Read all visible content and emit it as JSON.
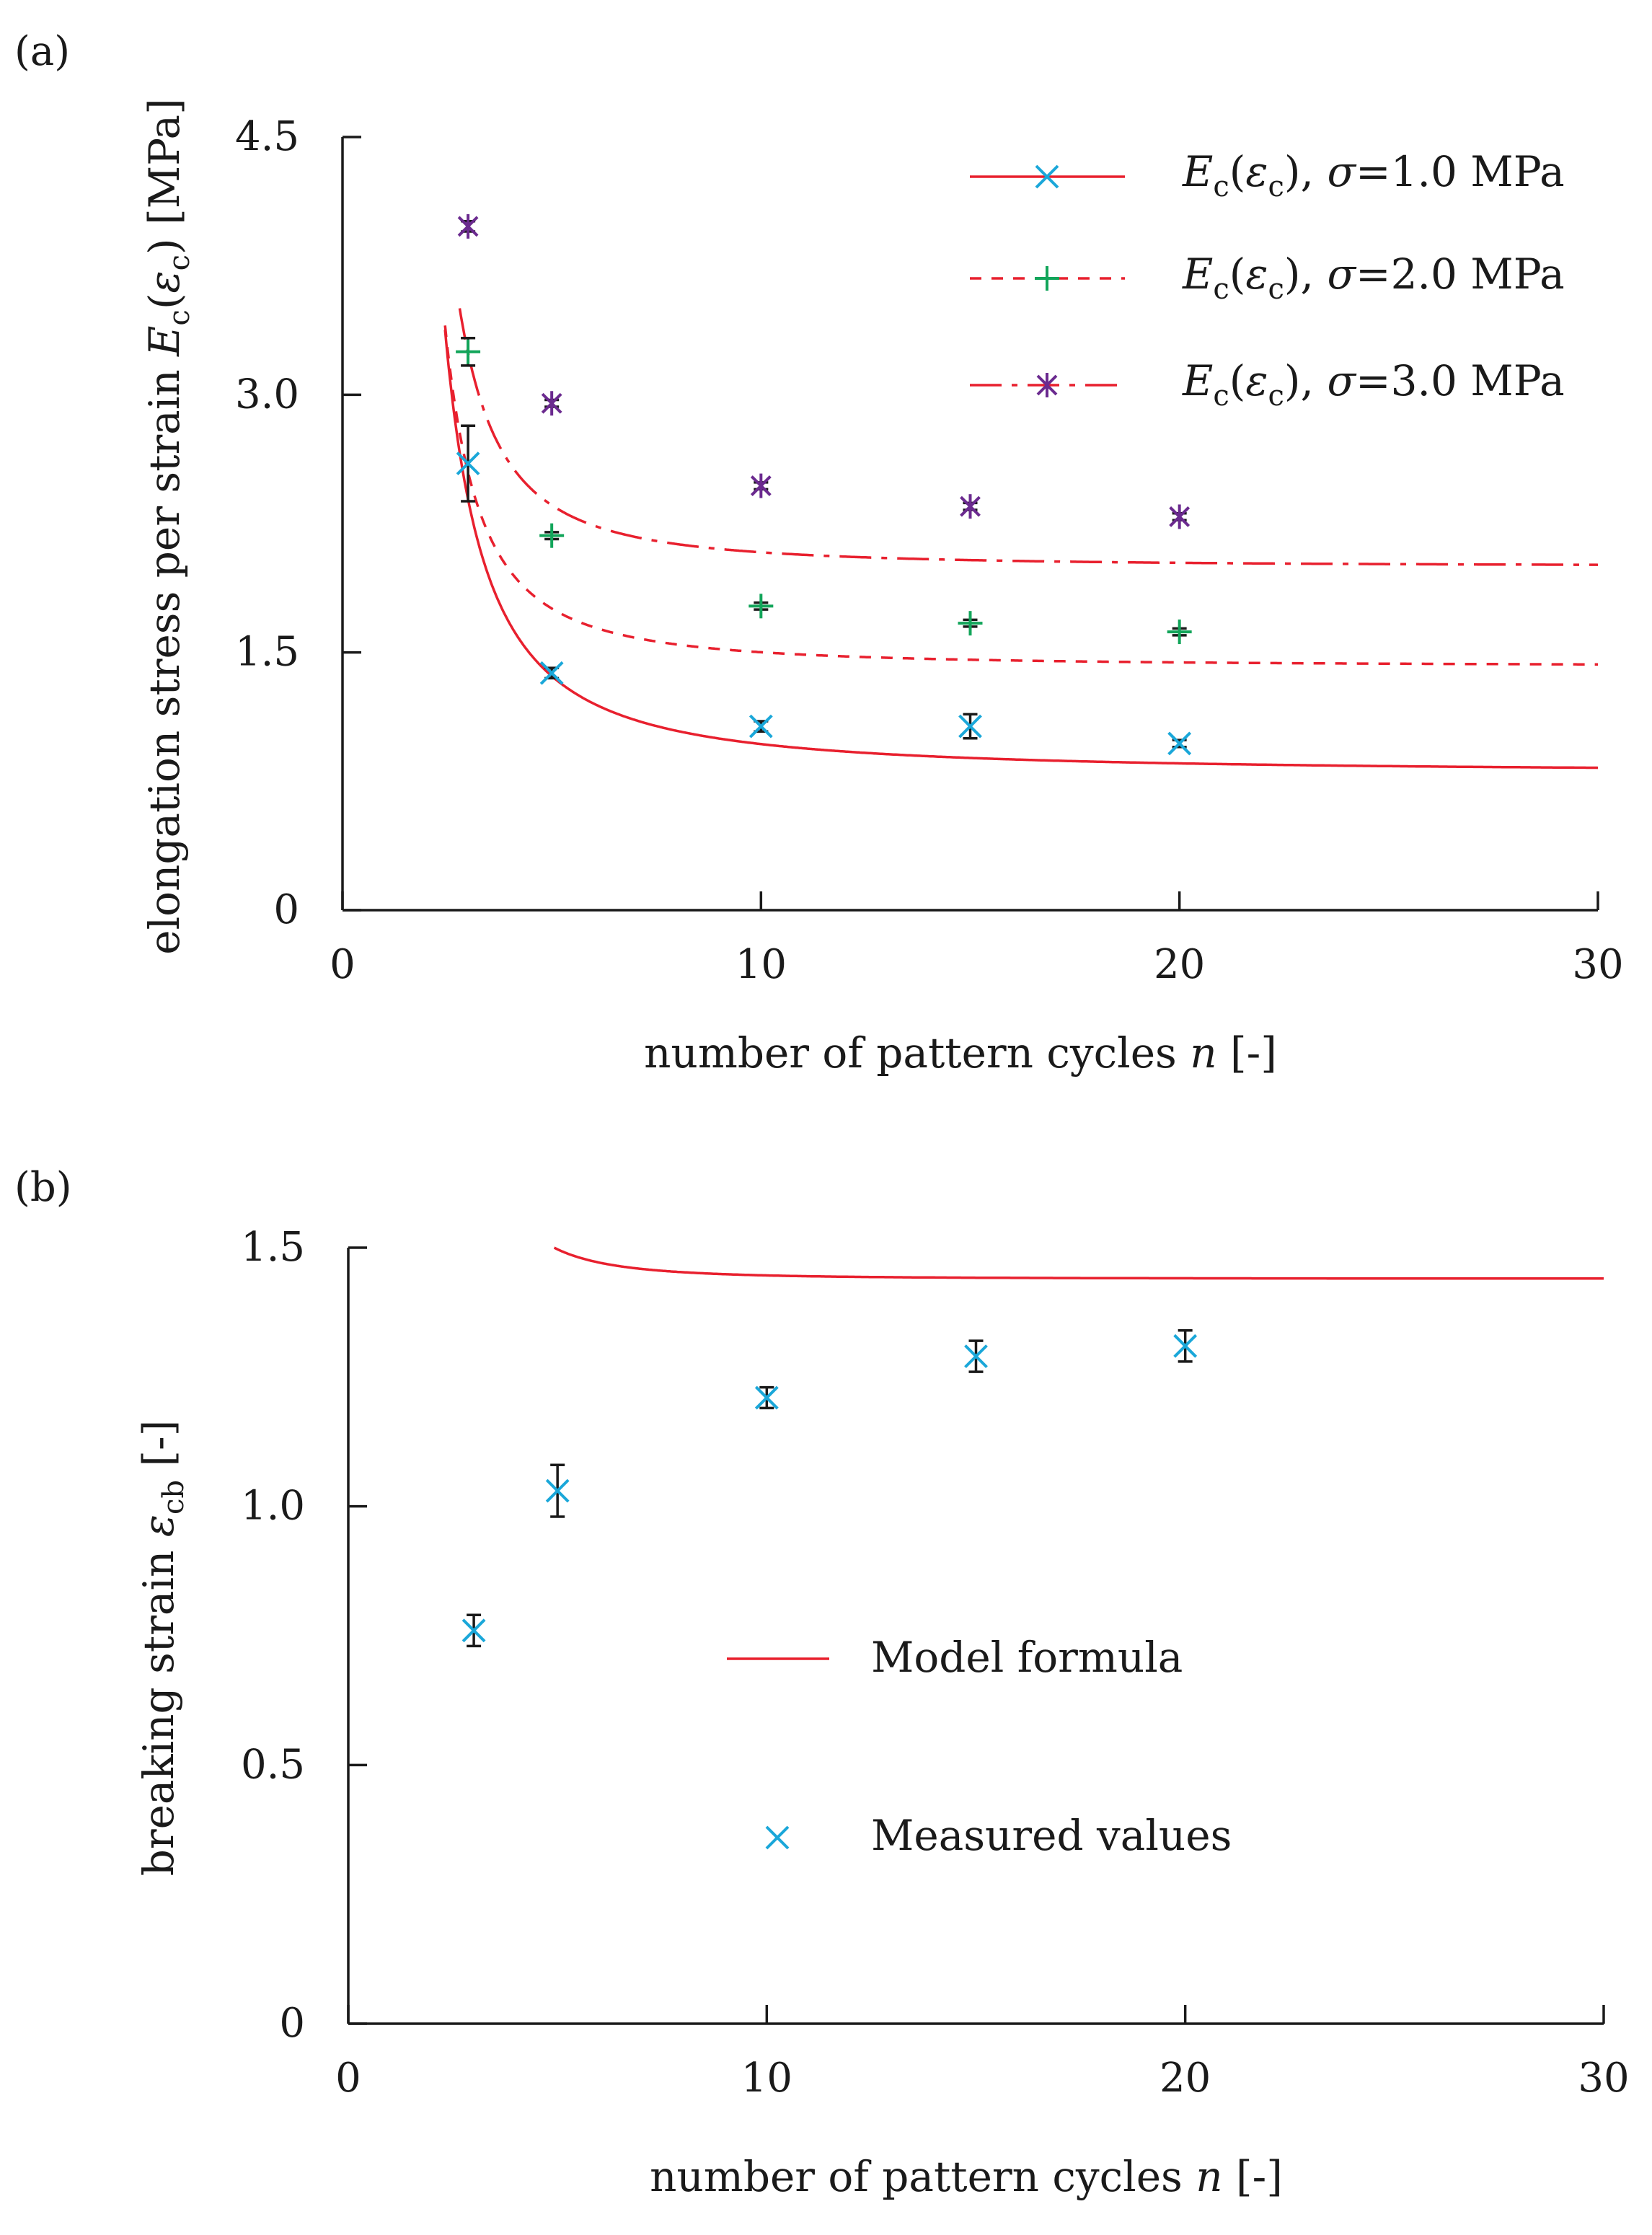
{
  "colors": {
    "curve": "#e8202e",
    "marker_sigma1": "#1aa7d9",
    "marker_sigma2": "#12a55a",
    "marker_sigma3": "#6b2a8f",
    "marker_measured": "#1aa7d9",
    "axis": "#1a1a1a",
    "errorbar": "#1a1a1a"
  },
  "chart_data": [
    {
      "type": "line",
      "panel_label": "(a)",
      "title": "",
      "xlabel": "number of pattern cycles n [-]",
      "xlabel_parts": {
        "prefix": "number of pattern cycles ",
        "var": "n",
        "suffix": " [-]"
      },
      "ylabel": "elongation stress per strain E_c(ε_c) [MPa]",
      "ylabel_parts": {
        "prefix": "elongation stress per strain ",
        "var": "E",
        "sub": "c",
        "open": "(",
        "var2": "ε",
        "sub2": "c",
        "close": ") [MPa]"
      },
      "xlim": [
        0,
        30
      ],
      "ylim": [
        0,
        4.5
      ],
      "xticks": [
        0,
        10,
        20,
        30
      ],
      "xtick_labels": [
        "0",
        "10",
        "20",
        "30"
      ],
      "yticks": [
        0,
        1.5,
        3.0,
        4.5
      ],
      "ytick_labels": [
        "0",
        "1.5",
        "3.0",
        "4.5"
      ],
      "legend_position": "top-right",
      "series": [
        {
          "name": "E_c(ε_c), σ=1.0 MPa",
          "legend_parts": {
            "var": "E",
            "sub": "c",
            "open": "(",
            "var2": "ε",
            "sub2": "c",
            "close": "), ",
            "sym": "σ",
            "rest": "=1.0 MPa"
          },
          "line_style": "solid",
          "marker": "x",
          "color_key": "marker_sigma1",
          "model": {
            "a": 0.8,
            "b": 4.5,
            "c": 1.5
          },
          "curve_x_start": 2.45,
          "x": [
            3,
            5,
            10,
            15,
            20
          ],
          "y": [
            2.6,
            1.38,
            1.07,
            1.07,
            0.97
          ],
          "yerr": [
            0.22,
            0.03,
            0.03,
            0.07,
            0.02
          ]
        },
        {
          "name": "E_c(ε_c), σ=2.0 MPa",
          "legend_parts": {
            "var": "E",
            "sub": "c",
            "open": "(",
            "var2": "ε",
            "sub2": "c",
            "close": "), ",
            "sym": "σ",
            "rest": "=2.0 MPa"
          },
          "line_style": "dashed",
          "marker": "+",
          "color_key": "marker_sigma2",
          "model": {
            "a": 1.42,
            "b": 3.8,
            "c": 1.75
          },
          "curve_x_start": 2.45,
          "x": [
            3,
            5,
            10,
            15,
            20
          ],
          "y": [
            3.25,
            2.18,
            1.77,
            1.67,
            1.62
          ],
          "yerr": [
            0.08,
            0.02,
            0.02,
            0.02,
            0.02
          ]
        },
        {
          "name": "E_c(ε_c), σ=3.0 MPa",
          "legend_parts": {
            "var": "E",
            "sub": "c",
            "open": "(",
            "var2": "ε",
            "sub2": "c",
            "close": "), ",
            "sym": "σ",
            "rest": "=3.0 MPa"
          },
          "line_style": "dashdot",
          "marker": "star",
          "color_key": "marker_sigma3",
          "model": {
            "a": 2.0,
            "b": 4.33,
            "c": 1.8
          },
          "curve_x_start": 2.8,
          "x": [
            3,
            5,
            10,
            15,
            20
          ],
          "y": [
            3.98,
            2.95,
            2.47,
            2.35,
            2.29
          ],
          "yerr": [
            0.03,
            0.02,
            0.02,
            0.02,
            0.02
          ]
        }
      ]
    },
    {
      "type": "line",
      "panel_label": "(b)",
      "title": "",
      "xlabel": "number of pattern cycles n [-]",
      "xlabel_parts": {
        "prefix": "number of pattern cycles ",
        "var": "n",
        "suffix": " [-]"
      },
      "ylabel": "breaking strain ε_cb [-]",
      "ylabel_parts": {
        "prefix": "breaking strain ",
        "var": "ε",
        "sub": "cb",
        "suffix": " [-]"
      },
      "xlim": [
        0,
        30
      ],
      "ylim": [
        0,
        1.5
      ],
      "xticks": [
        0,
        10,
        20,
        30
      ],
      "xtick_labels": [
        "0",
        "10",
        "20",
        "30"
      ],
      "yticks": [
        0,
        0.5,
        1.0,
        1.5
      ],
      "ytick_labels": [
        "0",
        "0.5",
        "1.0",
        "1.5"
      ],
      "legend_position": "center",
      "series": [
        {
          "name": "Model formula",
          "line_style": "solid",
          "model": {
            "a": 1.44,
            "b": 2.4,
            "c": 2.7
          },
          "curve_x_start": 2.1
        },
        {
          "name": "Measured values",
          "marker": "x",
          "color_key": "marker_measured",
          "x": [
            3,
            5,
            10,
            15,
            20
          ],
          "y": [
            0.76,
            1.03,
            1.21,
            1.29,
            1.31
          ],
          "yerr": [
            0.03,
            0.05,
            0.02,
            0.03,
            0.03
          ]
        }
      ]
    }
  ]
}
